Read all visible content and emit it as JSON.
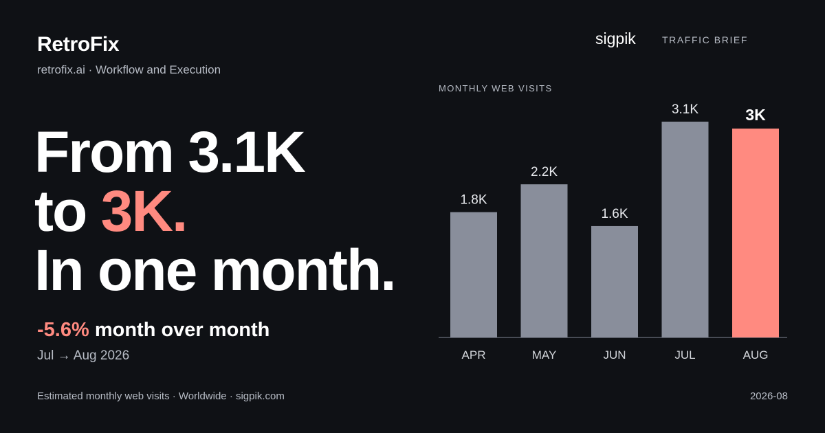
{
  "brand": {
    "name": "RetroFix",
    "subtitle": "retrofix.ai · Workflow and Execution"
  },
  "headline": {
    "line1": "From 3.1K",
    "line2_prefix": "to ",
    "line2_highlight": "3K.",
    "line3": "In one month."
  },
  "delta": {
    "value": "-5.6%",
    "text": " month over month"
  },
  "period": "Jul → Aug 2026",
  "footer": {
    "source": "Estimated monthly web visits · Worldwide · sigpik.com",
    "date": "2026-08"
  },
  "logo": "sigpik",
  "brief_label": "TRAFFIC BRIEF",
  "colors": {
    "background": "#0f1115",
    "bar": "#898e9b",
    "highlight": "#ff8a80",
    "muted_text": "#b7bcc5"
  },
  "chart_data": {
    "type": "bar",
    "title": "MONTHLY WEB VISITS",
    "categories": [
      "APR",
      "MAY",
      "JUN",
      "JUL",
      "AUG"
    ],
    "values": [
      1800,
      2200,
      1600,
      3100,
      3000
    ],
    "value_labels": [
      "1.8K",
      "2.2K",
      "1.6K",
      "3.1K",
      "3K"
    ],
    "highlight_index": 4,
    "ylim": [
      0,
      3100
    ],
    "grid": false,
    "xlabel": "",
    "ylabel": ""
  }
}
